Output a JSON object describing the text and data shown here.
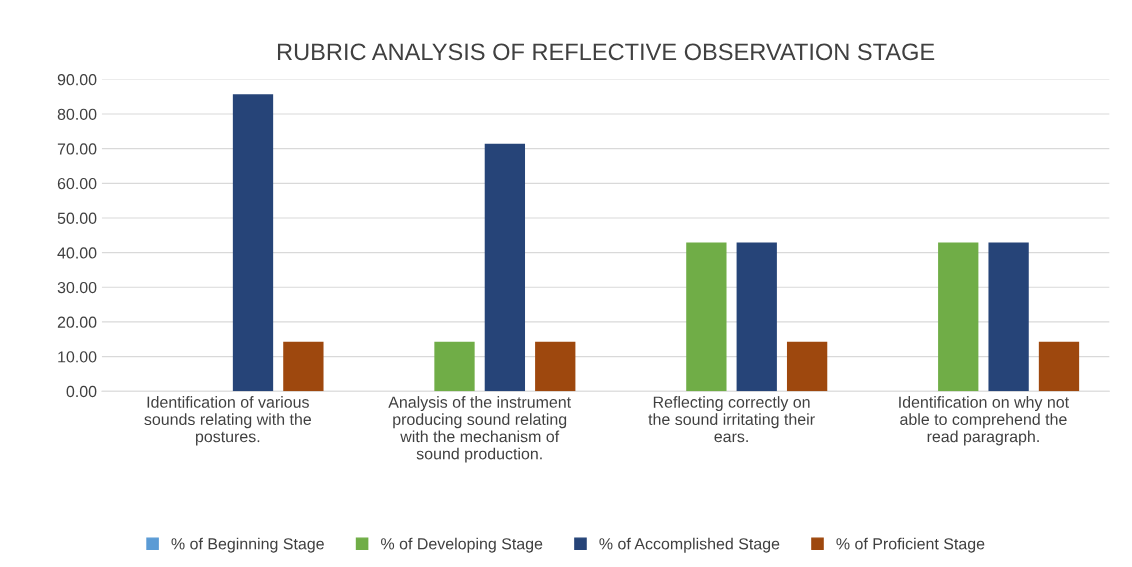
{
  "chart_data": {
    "type": "bar",
    "title": "RUBRIC ANALYSIS OF REFLECTIVE OBSERVATION STAGE",
    "categories": [
      "Identification of various sounds relating with the postures.",
      "Analysis of the instrument producing sound relating with the mechanism of sound production.",
      "Reflecting correctly on the sound irritating their ears.",
      "Identification on why not able to comprehend the read paragraph."
    ],
    "series": [
      {
        "name": "% of Beginning Stage",
        "color": "#5b9bd5",
        "values": [
          0,
          0,
          0,
          0
        ]
      },
      {
        "name": "% of Developing Stage",
        "color": "#70ad47",
        "values": [
          0,
          14.3,
          42.9,
          42.9
        ]
      },
      {
        "name": "% of Accomplished Stage",
        "color": "#264478",
        "values": [
          85.7,
          71.4,
          42.9,
          42.9
        ]
      },
      {
        "name": "% of Proficient Stage",
        "color": "#9e480e",
        "values": [
          14.3,
          14.3,
          14.3,
          14.3
        ]
      }
    ],
    "ylim": [
      0,
      90
    ],
    "yticks": [
      {
        "value": 0,
        "label": "0.00"
      },
      {
        "value": 10,
        "label": "10.00"
      },
      {
        "value": 20,
        "label": "20.00"
      },
      {
        "value": 30,
        "label": "30.00"
      },
      {
        "value": 40,
        "label": "40.00"
      },
      {
        "value": 50,
        "label": "50.00"
      },
      {
        "value": 60,
        "label": "60.00"
      },
      {
        "value": 70,
        "label": "70.00"
      },
      {
        "value": 80,
        "label": "80.00"
      },
      {
        "value": 90,
        "label": "90.00"
      }
    ],
    "grid": "y",
    "legend": "bottom"
  }
}
